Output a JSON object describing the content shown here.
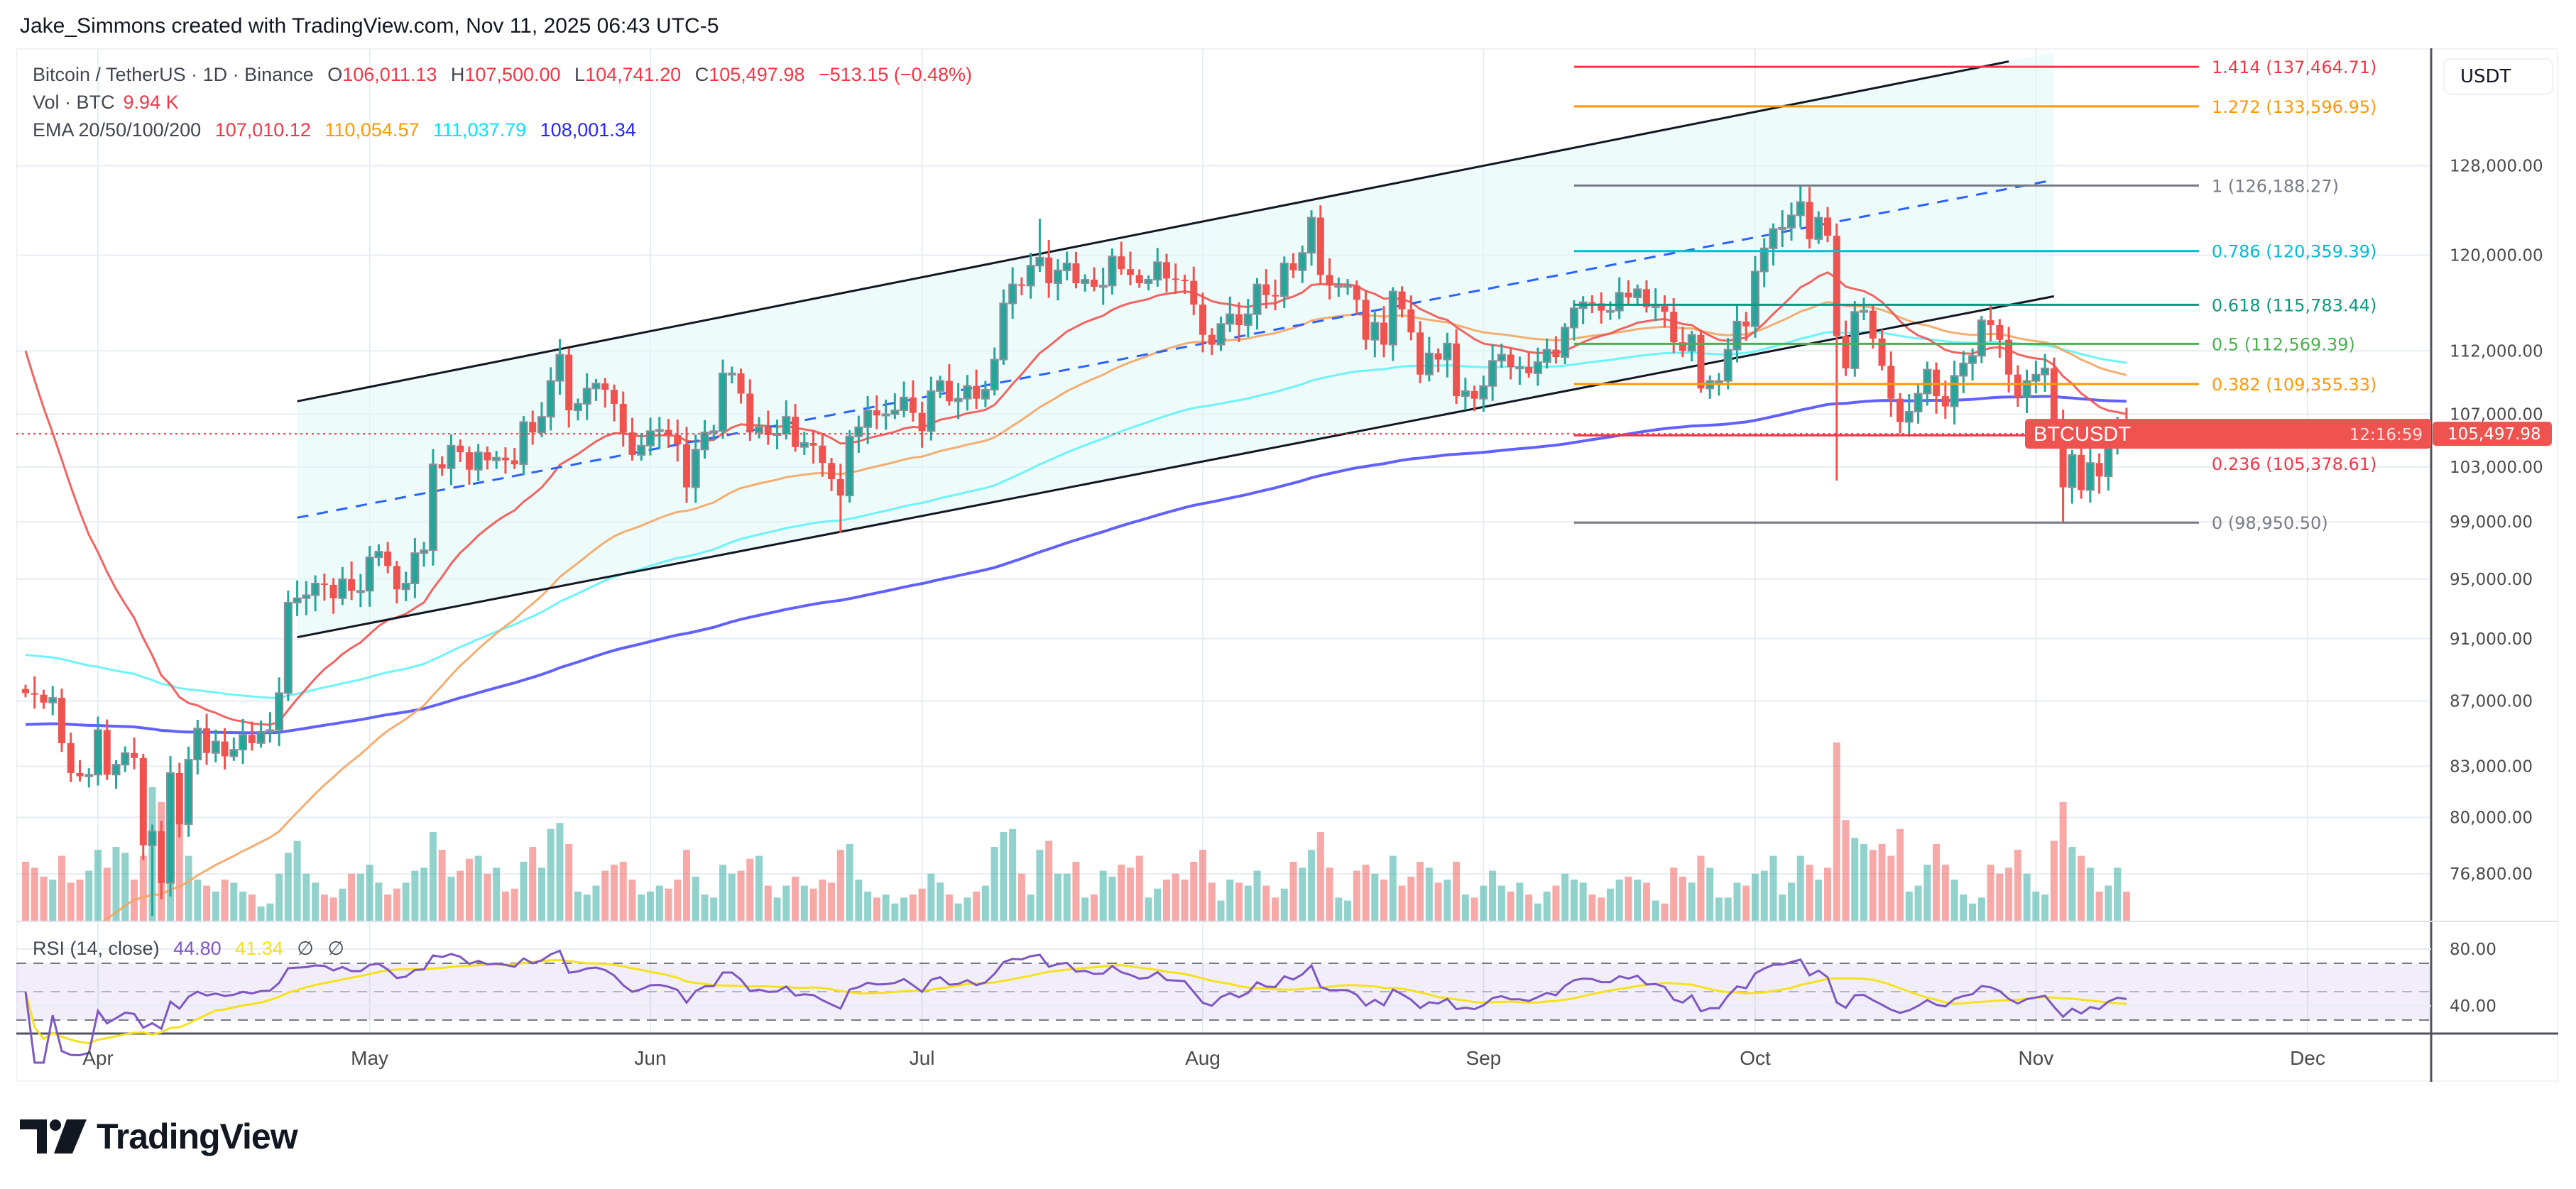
{
  "header": {
    "attribution": "Jake_Simmons created with TradingView.com, Nov 11, 2025 06:43 UTC-5"
  },
  "legend": {
    "symbol": "Bitcoin / TetherUS · 1D · Binance",
    "o_label": "O",
    "o": "106,011.13",
    "h_label": "H",
    "h": "107,500.00",
    "l_label": "L",
    "l": "104,741.20",
    "c_label": "C",
    "c": "105,497.98",
    "change": "−513.15 (−0.48%)",
    "vol_label": "Vol · BTC",
    "vol": "9.94 K",
    "ema_label": "EMA 20/50/100/200",
    "ema_values": [
      "107,010.12",
      "110,054.57",
      "111,037.79",
      "108,001.34"
    ]
  },
  "price_axis": {
    "currency": "USDT",
    "ticks": [
      "128,000.00",
      "120,000.00",
      "112,000.00",
      "107,000.00",
      "103,000.00",
      "99,000.00",
      "95,000.00",
      "91,000.00",
      "87,000.00",
      "83,000.00",
      "80,000.00",
      "76,800.00"
    ],
    "last_price": "105,497.98",
    "countdown": "12:16:59",
    "symbol_tag": "BTCUSDT"
  },
  "rsi": {
    "label": "RSI (14, close)",
    "value": "44.80",
    "ma": "41.34",
    "na1": "∅",
    "na2": "∅",
    "ticks": [
      "80.00",
      "40.00"
    ],
    "upper_band": 70,
    "middle_band": 50,
    "lower_band": 30
  },
  "time_axis": {
    "labels": [
      "Apr",
      "May",
      "Jun",
      "Jul",
      "Aug",
      "Sep",
      "Oct",
      "Nov",
      "Dec"
    ]
  },
  "fib": {
    "from_date": "2025-09-11",
    "to_date": "2025-11-19",
    "levels": [
      {
        "label": "1.414 (137,464.71)",
        "price": 137464.71,
        "color": "#f23645"
      },
      {
        "label": "1.272 (133,596.95)",
        "price": 133596.95,
        "color": "#ff9800"
      },
      {
        "label": "1 (126,188.27)",
        "price": 126188.27,
        "color": "#787b86"
      },
      {
        "label": "0.786 (120,359.39)",
        "price": 120359.39,
        "color": "#00bcd4"
      },
      {
        "label": "0.618 (115,783.44)",
        "price": 115783.44,
        "color": "#089981"
      },
      {
        "label": "0.5 (112,569.39)",
        "price": 112569.39,
        "color": "#4caf50"
      },
      {
        "label": "0.382 (109,355.33)",
        "price": 109355.33,
        "color": "#ff9800"
      },
      {
        "label": "0.236 (105,378.61)",
        "price": 105378.61,
        "color": "#f23645"
      },
      {
        "label": "0 (98,950.50)",
        "price": 98950.5,
        "color": "#787b86"
      }
    ]
  },
  "logo": "TradingView",
  "chart_data": {
    "type": "candlestick",
    "interval": "1D",
    "y_scale": "log",
    "grid": true,
    "first_date": "2025-03-24",
    "close": [
      87500,
      87400,
      86900,
      87200,
      84400,
      82600,
      82400,
      82500,
      85200,
      82500,
      83100,
      83800,
      83500,
      78400,
      79200,
      76300,
      82600,
      79600,
      83400,
      85300,
      83800,
      84500,
      83600,
      84000,
      84900,
      84400,
      85100,
      85200,
      87500,
      93400,
      93700,
      93900,
      94700,
      94600,
      93700,
      95000,
      94200,
      94200,
      96500,
      96900,
      95900,
      94300,
      94700,
      96800,
      97000,
      103200,
      102900,
      104600,
      104100,
      102800,
      104100,
      103500,
      103700,
      103500,
      103200,
      106400,
      105600,
      106800,
      109600,
      111700,
      107300,
      107800,
      109000,
      109400,
      108900,
      107800,
      105600,
      103900,
      104600,
      105700,
      105800,
      105400,
      104700,
      101500,
      104300,
      105600,
      105700,
      110200,
      110200,
      108600,
      105600,
      106000,
      105400,
      105500,
      106800,
      104500,
      104800,
      104600,
      103300,
      102100,
      100900,
      105300,
      106000,
      107300,
      106900,
      107000,
      107300,
      108300,
      107100,
      105700,
      108800,
      109600,
      108000,
      108200,
      109200,
      108200,
      108900,
      111300,
      115900,
      117500,
      117400,
      119100,
      119800,
      117600,
      118700,
      119300,
      117600,
      117900,
      117300,
      117400,
      119900,
      118800,
      118300,
      117600,
      117900,
      119400,
      118000,
      117900,
      117800,
      115800,
      113300,
      112500,
      114200,
      115000,
      114100,
      115000,
      117500,
      116600,
      116500,
      119300,
      118700,
      120200,
      123300,
      118300,
      117400,
      117400,
      117400,
      116200,
      112900,
      114300,
      112500,
      116900,
      115400,
      113500,
      110100,
      111800,
      111300,
      112600,
      108400,
      108800,
      108200,
      109200,
      111200,
      111700,
      110700,
      110700,
      110200,
      111100,
      112100,
      111500,
      113900,
      115500,
      116000,
      115900,
      115300,
      115300,
      116800,
      116400,
      117100,
      115600,
      115700,
      115200,
      112700,
      112000,
      113300,
      109000,
      109600,
      109600,
      112100,
      114400,
      114000,
      118600,
      120600,
      122300,
      122400,
      123500,
      124700,
      121400,
      123300,
      121700,
      113200,
      110600,
      115200,
      115300,
      113000,
      110800,
      108200,
      106400,
      107200,
      108600,
      110500,
      108400,
      107600,
      110000,
      111000,
      111600,
      114500,
      114100,
      112900,
      110100,
      108300,
      109600,
      110100,
      110600,
      106500,
      101500,
      103900,
      101300,
      103300,
      102300,
      104700,
      106011.13,
      105497.98
    ],
    "volume_k_btc": [
      20,
      18,
      15,
      14,
      22,
      13,
      14,
      17,
      24,
      18,
      25,
      23,
      14,
      22,
      45,
      40,
      39,
      33,
      22,
      14,
      12,
      10,
      14,
      13,
      10,
      9,
      5,
      6,
      16,
      23,
      27,
      16,
      13,
      9,
      8,
      11,
      16,
      16,
      19,
      13,
      9,
      11,
      13,
      17,
      18,
      30,
      24,
      15,
      17,
      21,
      22,
      16,
      18,
      10,
      11,
      20,
      25,
      18,
      31,
      33,
      26,
      10,
      9,
      12,
      17,
      19,
      20,
      14,
      9,
      10,
      12,
      11,
      14,
      24,
      15,
      9,
      8,
      19,
      16,
      17,
      21,
      22,
      12,
      8,
      12,
      15,
      12,
      11,
      14,
      13,
      24,
      26,
      14,
      10,
      8,
      9,
      6,
      8,
      9,
      11,
      16,
      13,
      9,
      6,
      8,
      10,
      12,
      25,
      30,
      31,
      16,
      9,
      24,
      27,
      16,
      16,
      20,
      8,
      9,
      17,
      15,
      19,
      18,
      22,
      8,
      11,
      14,
      16,
      14,
      20,
      24,
      13,
      7,
      14,
      13,
      12,
      17,
      12,
      8,
      11,
      20,
      18,
      24,
      30,
      18,
      8,
      7,
      17,
      19,
      16,
      14,
      22,
      12,
      15,
      20,
      18,
      13,
      14,
      20,
      9,
      8,
      12,
      17,
      12,
      10,
      13,
      9,
      6,
      10,
      12,
      16,
      14,
      13,
      9,
      8,
      11,
      14,
      15,
      14,
      13,
      7,
      6,
      18,
      15,
      13,
      22,
      18,
      8,
      8,
      13,
      12,
      16,
      17,
      22,
      9,
      13,
      22,
      19,
      14,
      18,
      60,
      34,
      28,
      26,
      24,
      26,
      22,
      31,
      10,
      12,
      19,
      26,
      19,
      14,
      9,
      6,
      8,
      19,
      16,
      18,
      24,
      16,
      10,
      9,
      27,
      40,
      25,
      22,
      18,
      10,
      12,
      18,
      9.94
    ],
    "last_bar": {
      "open": 106011.13,
      "high": 107500.0,
      "low": 104741.2,
      "close": 105497.98
    },
    "wick_overrides": [
      {
        "date": "2025-04-07",
        "low": 74500
      },
      {
        "date": "2025-06-22",
        "low": 98200
      },
      {
        "date": "2025-07-14",
        "high": 123200
      },
      {
        "date": "2025-08-14",
        "high": 124400
      },
      {
        "date": "2025-10-06",
        "high": 126188.27
      },
      {
        "date": "2025-10-10",
        "low": 102000
      },
      {
        "date": "2025-11-04",
        "low": 98950.5
      }
    ],
    "ema": [
      {
        "period": 20,
        "color": "#f05350",
        "last": 107010.12
      },
      {
        "period": 50,
        "color": "#f4a460",
        "last": 110054.57
      },
      {
        "period": 100,
        "color": "#5ef3f7",
        "last": 111037.79
      },
      {
        "period": 200,
        "color": "#5050ff",
        "last": 108001.34
      }
    ],
    "channel": {
      "upper": [
        [
          "2025-04-23",
          108000
        ],
        [
          "2025-10-29",
          138000
        ]
      ],
      "lower": [
        [
          "2025-04-23",
          91100
        ],
        [
          "2025-11-03",
          116500
        ]
      ],
      "middle": [
        [
          "2025-04-23",
          99300
        ],
        [
          "2025-11-03",
          126700
        ]
      ],
      "fill_color": "#e0f7f7"
    },
    "colors": {
      "up": "#26a69a",
      "down": "#ef5350",
      "rsi": "#7e57c2",
      "rsi_ma": "#f5e11e"
    }
  }
}
